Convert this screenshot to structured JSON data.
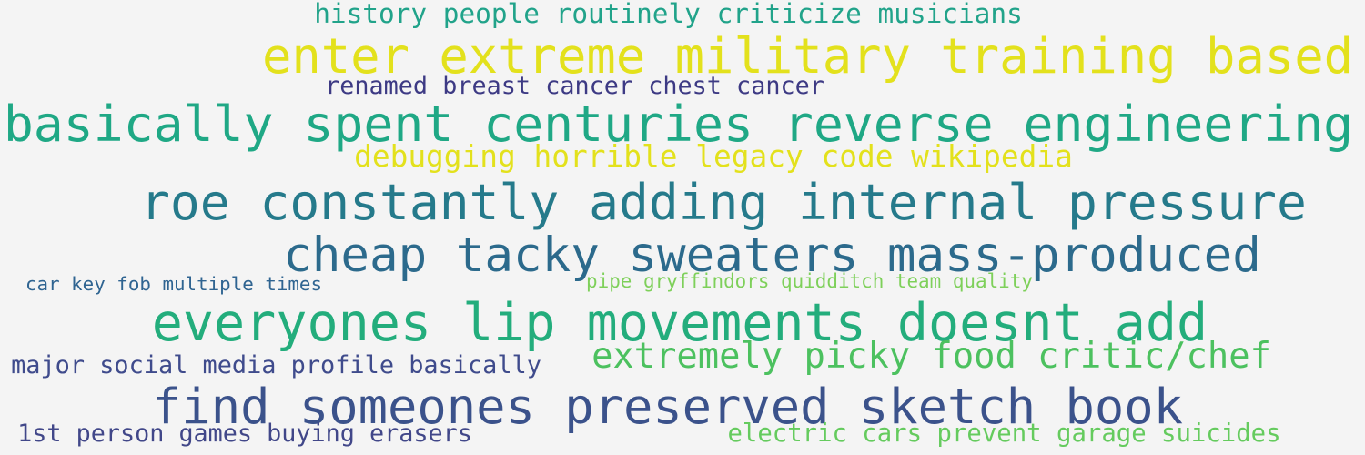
{
  "phrases": [
    {
      "text": "history people routinely criticize musicians",
      "color": "#21a38a"
    },
    {
      "text": "enter extreme military training based",
      "color": "#e3e11c"
    },
    {
      "text": "renamed breast cancer chest cancer",
      "color": "#3d3a84"
    },
    {
      "text": "basically spent centuries reverse engineering",
      "color": "#1fa885"
    },
    {
      "text": "debugging horrible legacy code wikipedia",
      "color": "#e3e11c"
    },
    {
      "text": "roe constantly adding internal pressure",
      "color": "#257a8b"
    },
    {
      "text": "cheap tacky sweaters mass-produced",
      "color": "#2c6a8c"
    },
    {
      "text": "car key fob multiple times",
      "color": "#2f6491"
    },
    {
      "text": "pipe gryffindors quidditch team quality",
      "color": "#7ed05a"
    },
    {
      "text": "everyones lip movements doesnt add",
      "color": "#23ad7c"
    },
    {
      "text": "extremely picky food critic/chef",
      "color": "#4cc15f"
    },
    {
      "text": "major social media profile basically",
      "color": "#3f4b8c"
    },
    {
      "text": "find someones preserved sketch book",
      "color": "#3b528b"
    },
    {
      "text": "1st person games buying erasers",
      "color": "#414789"
    },
    {
      "text": "electric cars prevent garage suicides",
      "color": "#65cb5e"
    }
  ]
}
